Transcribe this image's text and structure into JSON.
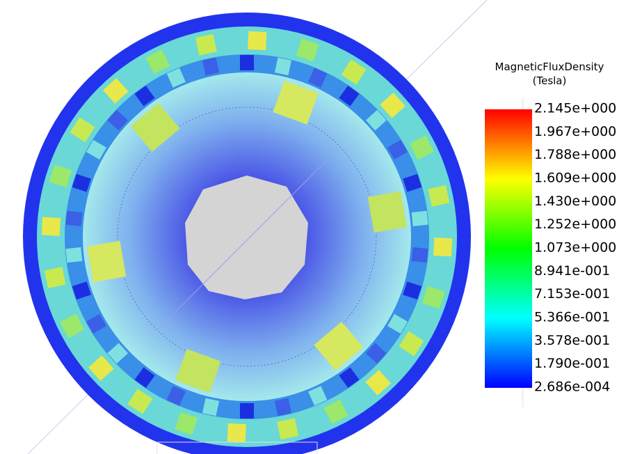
{
  "legend": {
    "title": "MagneticFluxDensity",
    "unit": "(Tesla)",
    "labels": [
      "2.145e+000",
      "1.967e+000",
      "1.788e+000",
      "1.609e+000",
      "1.430e+000",
      "1.252e+000",
      "1.073e+000",
      "8.941e-001",
      "7.153e-001",
      "5.366e-001",
      "3.578e-001",
      "1.790e-001",
      "2.686e-004"
    ]
  }
}
